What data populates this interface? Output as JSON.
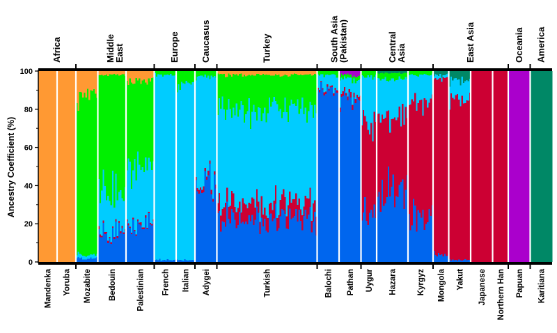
{
  "chart_data": {
    "type": "bar",
    "stacked": true,
    "ylabel": "Ancestry Coefficient (%)",
    "ylim": [
      0,
      100
    ],
    "yticks": [
      0,
      20,
      40,
      60,
      80,
      100
    ],
    "colors": {
      "orange": "#ff9933",
      "green": "#00f000",
      "light_blue": "#00ccff",
      "blue": "#0066ee",
      "red": "#cc0033",
      "purple": "#aa00cc",
      "teal": "#008866"
    },
    "component_order": [
      "blue",
      "red",
      "light_blue",
      "green",
      "orange",
      "purple",
      "teal"
    ],
    "regions": [
      {
        "name": "Africa",
        "populations": [
          "Mandenka",
          "Yoruba"
        ]
      },
      {
        "name": "Middle East",
        "populations": [
          "Mozabite",
          "Bedouin",
          "Palestinian"
        ]
      },
      {
        "name": "Europe",
        "populations": [
          "French",
          "Italian"
        ]
      },
      {
        "name": "Caucasus",
        "populations": [
          "Adygei"
        ]
      },
      {
        "name": "Turkey",
        "populations": [
          "Turkish"
        ]
      },
      {
        "name": "South Asia (Pakistan)",
        "populations": [
          "Balochi",
          "Pathan"
        ]
      },
      {
        "name": "Central Asia",
        "populations": [
          "Uygur",
          "Hazara",
          "Kyrgyz"
        ]
      },
      {
        "name": "East Asia",
        "populations": [
          "Mongola",
          "Yakut",
          "Japanese",
          "Northern Han"
        ]
      },
      {
        "name": "Oceania",
        "populations": [
          "Papuan"
        ]
      },
      {
        "name": "America",
        "populations": [
          "Karitiana"
        ]
      }
    ],
    "populations": [
      {
        "name": "Mandenka",
        "n": 12,
        "mean": {
          "orange": 100
        }
      },
      {
        "name": "Yoruba",
        "n": 12,
        "mean": {
          "orange": 100
        }
      },
      {
        "name": "Mozabite",
        "n": 14,
        "mean": {
          "blue": 2,
          "light_blue": 2,
          "green": 82,
          "orange": 14
        }
      },
      {
        "name": "Bedouin",
        "n": 18,
        "mean": {
          "blue": 14,
          "red": 1,
          "light_blue": 20,
          "green": 63,
          "orange": 2
        }
      },
      {
        "name": "Palestinian",
        "n": 18,
        "mean": {
          "blue": 19,
          "red": 1,
          "light_blue": 30,
          "green": 45,
          "orange": 5
        }
      },
      {
        "name": "French",
        "n": 14,
        "mean": {
          "blue": 1,
          "light_blue": 97,
          "green": 2
        }
      },
      {
        "name": "Italian",
        "n": 12,
        "mean": {
          "blue": 1,
          "light_blue": 92,
          "green": 7
        }
      },
      {
        "name": "Adygei",
        "n": 14,
        "mean": {
          "blue": 39,
          "red": 2,
          "light_blue": 56,
          "green": 3
        }
      },
      {
        "name": "Turkish",
        "n": 64,
        "mean": {
          "blue": 22,
          "red": 8,
          "light_blue": 50,
          "green": 18,
          "orange": 2
        }
      },
      {
        "name": "Balochi",
        "n": 14,
        "mean": {
          "blue": 90,
          "red": 1,
          "light_blue": 7,
          "green": 2
        }
      },
      {
        "name": "Pathan",
        "n": 14,
        "mean": {
          "blue": 85,
          "red": 2,
          "light_blue": 9,
          "green": 2,
          "purple": 2
        }
      },
      {
        "name": "Uygur",
        "n": 10,
        "mean": {
          "blue": 26,
          "red": 47,
          "light_blue": 24,
          "green": 3
        }
      },
      {
        "name": "Hazara",
        "n": 20,
        "mean": {
          "blue": 36,
          "red": 40,
          "light_blue": 20,
          "green": 3,
          "teal": 1
        }
      },
      {
        "name": "Kyrgyz",
        "n": 16,
        "mean": {
          "blue": 24,
          "red": 60,
          "light_blue": 14,
          "green": 2
        }
      },
      {
        "name": "Mongola",
        "n": 10,
        "mean": {
          "blue": 4,
          "red": 92,
          "light_blue": 2,
          "teal": 2
        }
      },
      {
        "name": "Yakut",
        "n": 14,
        "mean": {
          "blue": 1,
          "red": 85,
          "light_blue": 9,
          "teal": 5
        }
      },
      {
        "name": "Japanese",
        "n": 14,
        "mean": {
          "red": 100
        }
      },
      {
        "name": "Northern Han",
        "n": 10,
        "mean": {
          "red": 100
        }
      },
      {
        "name": "Papuan",
        "n": 14,
        "mean": {
          "purple": 100
        }
      },
      {
        "name": "Karitiana",
        "n": 14,
        "mean": {
          "teal": 100
        }
      }
    ]
  }
}
